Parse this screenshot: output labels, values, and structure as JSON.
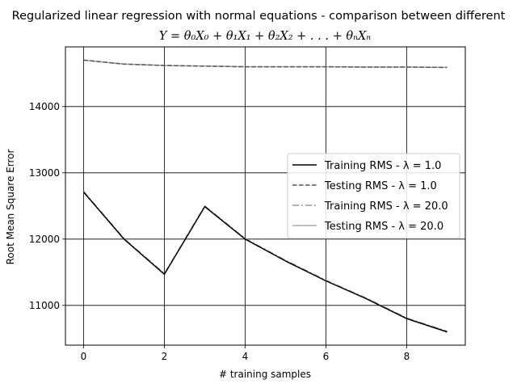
{
  "chart_data": {
    "type": "line",
    "title": "Regularized linear regression with normal equations - comparison between different",
    "subtitle": "Y = θ₀X₀ + θ₁X₁ + θ₂X₂ + . . . + θₙXₙ",
    "xlabel": "# training samples",
    "ylabel": "Root Mean Square Error",
    "xlim": [
      -0.45,
      9.45
    ],
    "ylim": [
      10400,
      14900
    ],
    "x_ticks": [
      0,
      2,
      4,
      6,
      8
    ],
    "x_tick_labels": [
      "0",
      "2",
      "4",
      "6",
      "8"
    ],
    "y_ticks": [
      11000,
      12000,
      13000,
      14000
    ],
    "y_tick_labels": [
      "11000",
      "12000",
      "13000",
      "14000"
    ],
    "grid": true,
    "legend_position": "center-right",
    "x": [
      0,
      1,
      2,
      3,
      4,
      5,
      6,
      7,
      8,
      9
    ],
    "series": [
      {
        "name": "Training RMS - λ = 1.0",
        "color": "#000000",
        "style": "solid",
        "values": [
          12710,
          12000,
          11470,
          12490,
          12000,
          11670,
          11370,
          11100,
          10800,
          10600
        ]
      },
      {
        "name": "Testing RMS - λ = 1.0",
        "color": "#555555",
        "style": "dashed",
        "values": [
          14700,
          14640,
          14620,
          14610,
          14600,
          14600,
          14600,
          14595,
          14595,
          14590
        ]
      },
      {
        "name": "Training RMS - λ = 20.0",
        "color": "#999999",
        "style": "dashdot",
        "values": [
          12720,
          12010,
          11480,
          12500,
          12010,
          11680,
          11380,
          11110,
          10810,
          10610
        ]
      },
      {
        "name": "Testing RMS - λ = 20.0",
        "color": "#aaaaaa",
        "style": "solid",
        "values": [
          14700,
          14640,
          14620,
          14610,
          14600,
          14600,
          14600,
          14595,
          14595,
          14590
        ]
      }
    ]
  }
}
